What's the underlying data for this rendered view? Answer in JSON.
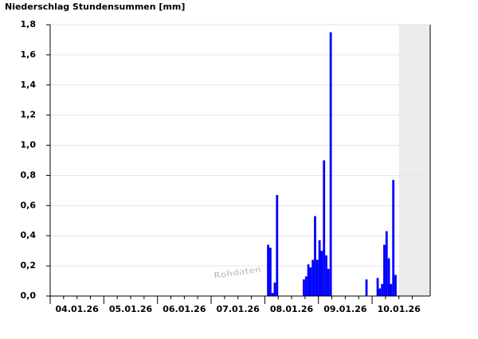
{
  "chart_data": {
    "type": "bar",
    "title": "Niederschlag Stundensummen [mm]",
    "watermark": "Rohdaten",
    "day_labels": [
      "04.01.26",
      "05.01.26",
      "06.01.26",
      "07.01.26",
      "08.01.26",
      "09.01.26",
      "10.01.26"
    ],
    "color": "#0000ff",
    "grid": true,
    "ylim": [
      0,
      1.8
    ],
    "yticks": [
      {
        "value": 0,
        "label": "0,0"
      },
      {
        "value": 0.2,
        "label": "0,2"
      },
      {
        "value": 0.4,
        "label": "0,4"
      },
      {
        "value": 0.6,
        "label": "0,6"
      },
      {
        "value": 0.8,
        "label": "0,8"
      },
      {
        "value": 1.0,
        "label": "1,0"
      },
      {
        "value": 1.2,
        "label": "1,2"
      },
      {
        "value": 1.4,
        "label": "1,4"
      },
      {
        "value": 1.6,
        "label": "1,6"
      },
      {
        "value": 1.8,
        "label": "1,8"
      }
    ],
    "values": [
      0,
      0,
      0,
      0,
      0,
      0,
      0,
      0,
      0,
      0,
      0,
      0,
      0,
      0,
      0,
      0,
      0,
      0,
      0,
      0,
      0,
      0,
      0,
      0,
      0,
      0,
      0,
      0,
      0,
      0,
      0,
      0,
      0,
      0,
      0,
      0,
      0,
      0,
      0,
      0,
      0,
      0,
      0,
      0,
      0,
      0,
      0,
      0,
      0,
      0,
      0,
      0,
      0,
      0,
      0,
      0,
      0,
      0,
      0,
      0,
      0,
      0,
      0,
      0,
      0,
      0,
      0,
      0,
      0,
      0,
      0,
      0,
      0,
      0,
      0,
      0,
      0,
      0,
      0,
      0,
      0,
      0,
      0,
      0,
      0,
      0,
      0,
      0,
      0,
      0,
      0,
      0,
      0,
      0,
      0,
      0,
      0,
      0.34,
      0.32,
      0.02,
      0.09,
      0.67,
      0,
      0,
      0,
      0,
      0,
      0,
      0,
      0,
      0,
      0,
      0,
      0.11,
      0.13,
      0.21,
      0.19,
      0.24,
      0.53,
      0.24,
      0.37,
      0.3,
      0.9,
      0.27,
      0.18,
      1.75,
      0,
      0,
      0,
      0,
      0,
      0,
      0,
      0,
      0,
      0,
      0,
      0,
      0,
      0,
      0,
      0.11,
      0,
      0,
      0,
      0,
      0.12,
      0.05,
      0.08,
      0.34,
      0.43,
      0.25,
      0.08,
      0.77,
      0.14,
      0,
      null,
      null,
      null,
      null,
      null,
      null,
      null,
      null,
      null,
      null,
      null,
      null,
      null,
      null
    ]
  }
}
